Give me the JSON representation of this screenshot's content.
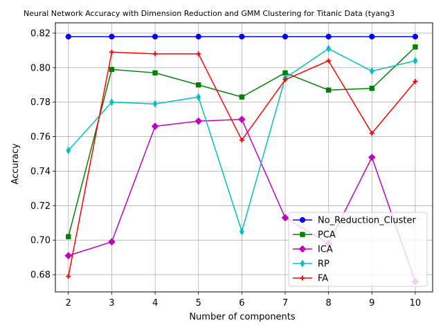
{
  "chart_data": {
    "type": "line",
    "title": "Neural Network Accuracy with Dimension Reduction and GMM Clustering for Titanic Data (tyang3",
    "xlabel": "Number of components",
    "ylabel": "Accuracy",
    "x": [
      2,
      3,
      4,
      5,
      6,
      7,
      8,
      9,
      10
    ],
    "xlim": [
      1.7,
      10.4
    ],
    "ylim": [
      0.67,
      0.826
    ],
    "xticks": [
      "2",
      "3",
      "4",
      "5",
      "6",
      "7",
      "8",
      "9",
      "10"
    ],
    "yticks": [
      "0.68",
      "0.70",
      "0.72",
      "0.74",
      "0.76",
      "0.78",
      "0.80",
      "0.82"
    ],
    "ytick_values": [
      0.68,
      0.7,
      0.72,
      0.74,
      0.76,
      0.78,
      0.8,
      0.82
    ],
    "grid": true,
    "legend_position": "lower-right",
    "series": [
      {
        "name": "No_Reduction_Cluster",
        "color": "#0000ff",
        "marker": "circle",
        "values": [
          0.818,
          0.818,
          0.818,
          0.818,
          0.818,
          0.818,
          0.818,
          0.818,
          0.818
        ]
      },
      {
        "name": "PCA",
        "color": "#008000",
        "marker": "square",
        "values": [
          0.702,
          0.799,
          0.797,
          0.79,
          0.783,
          0.797,
          0.787,
          0.788,
          0.812
        ]
      },
      {
        "name": "ICA",
        "color": "#bf00bf",
        "marker": "diamond",
        "values": [
          0.691,
          0.699,
          0.766,
          0.769,
          0.77,
          0.713,
          0.698,
          0.748,
          0.676
        ]
      },
      {
        "name": "RP",
        "color": "#00bfbf",
        "marker": "thin_diamond",
        "values": [
          0.752,
          0.78,
          0.779,
          0.783,
          0.705,
          0.794,
          0.811,
          0.798,
          0.804
        ]
      },
      {
        "name": "FA",
        "color": "#ff0000",
        "marker": "plus",
        "values": [
          0.679,
          0.809,
          0.808,
          0.808,
          0.758,
          0.793,
          0.804,
          0.762,
          0.792
        ]
      }
    ]
  }
}
